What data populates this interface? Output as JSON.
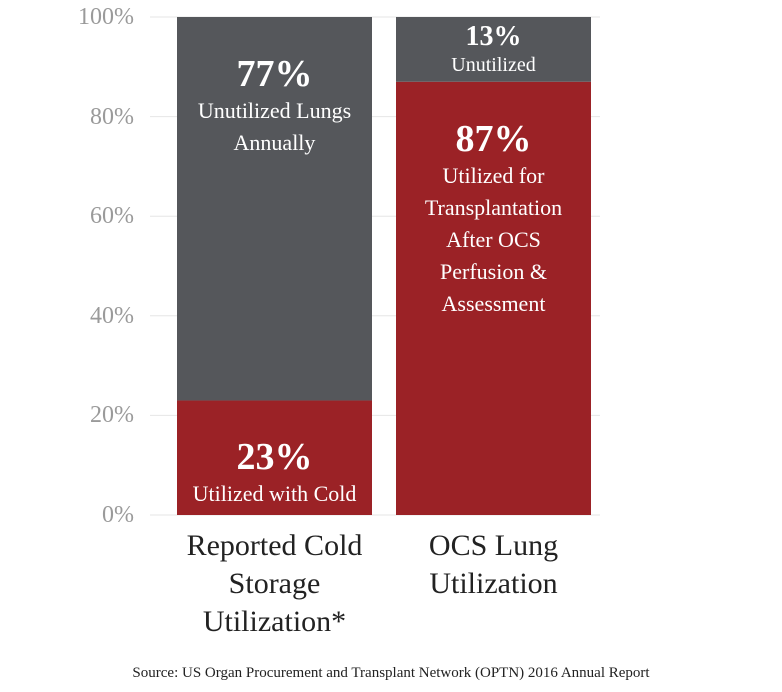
{
  "chart_data": {
    "type": "stacked_bar",
    "categories": [
      "Reported Cold Storage Utilization*",
      "OCS Lung Utilization"
    ],
    "series": [
      {
        "color": "#9b2226",
        "values": [
          23,
          87
        ],
        "value_labels": [
          "23%",
          "87%"
        ],
        "segment_labels": [
          "Utilized with Cold Storage",
          "Utilized for Transplantation After OCS Perfusion & Assessment"
        ]
      },
      {
        "color": "#55575b",
        "values": [
          77,
          13
        ],
        "value_labels": [
          "77%",
          "13%"
        ],
        "segment_labels": [
          "Unutilized Lungs Annually",
          "Unutilized"
        ]
      }
    ],
    "ylim": [
      0,
      100
    ],
    "yticks": [
      {
        "value": 0,
        "label": "0%"
      },
      {
        "value": 20,
        "label": "20%"
      },
      {
        "value": 40,
        "label": "40%"
      },
      {
        "value": 60,
        "label": "60%"
      },
      {
        "value": 80,
        "label": "80%"
      },
      {
        "value": 100,
        "label": "100%"
      }
    ],
    "grid": true,
    "source": "Source: US Organ Procurement and Transplant Network (OPTN) 2016 Annual Report"
  }
}
